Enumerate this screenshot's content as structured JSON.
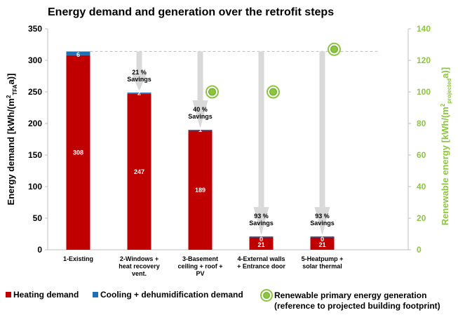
{
  "chart_data": {
    "type": "bar",
    "title": "Energy demand and generation over the retrofit steps",
    "categories": [
      [
        "1-Existing"
      ],
      [
        "2-Windows +",
        "heat recovery",
        "vent."
      ],
      [
        "3-Basement",
        "ceiling + roof +",
        "PV"
      ],
      [
        "4-External walls",
        "+ Entrance door"
      ],
      [
        "5-Heatpump +",
        "solar thermal"
      ]
    ],
    "series": [
      {
        "name": "Heating demand",
        "values": [
          308,
          247,
          189,
          21,
          21
        ],
        "labels": [
          "308",
          "247",
          "189",
          "21",
          "21"
        ],
        "color": "#c00000"
      },
      {
        "name": "Cooling + dehumidification demand",
        "values": [
          6,
          2,
          1,
          0,
          0
        ],
        "labels": [
          "6",
          "2",
          "1",
          "0",
          "0"
        ],
        "color": "#1f6fb4"
      }
    ],
    "renewable": {
      "name_lines": [
        "Renewable primary energy generation",
        "(reference to projected building footprint)"
      ],
      "values": [
        null,
        null,
        100,
        100,
        127
      ],
      "color": "#8cc63f"
    },
    "savings": [
      {
        "index": 1,
        "lines": [
          "21 %",
          "Savings"
        ]
      },
      {
        "index": 2,
        "lines": [
          "40 %",
          "Savings"
        ]
      },
      {
        "index": 3,
        "lines": [
          "93 %",
          "Savings"
        ]
      },
      {
        "index": 4,
        "lines": [
          "93 %",
          "Savings"
        ]
      }
    ],
    "reference_line_value": 314,
    "y_left": {
      "label_parts": [
        "Energy demand [kWh/(m",
        "2",
        "TFA",
        "a)]"
      ],
      "ylim": [
        0,
        350
      ],
      "ticks": [
        0,
        50,
        100,
        150,
        200,
        250,
        300,
        350
      ]
    },
    "y_right": {
      "label_parts": [
        "Renewable energy [kWh/(m",
        "2",
        "projected",
        "a)]"
      ],
      "ylim": [
        0,
        140
      ],
      "ticks": [
        0,
        20,
        40,
        60,
        80,
        100,
        120,
        140
      ]
    },
    "legend_position": "bottom",
    "grid": false
  }
}
